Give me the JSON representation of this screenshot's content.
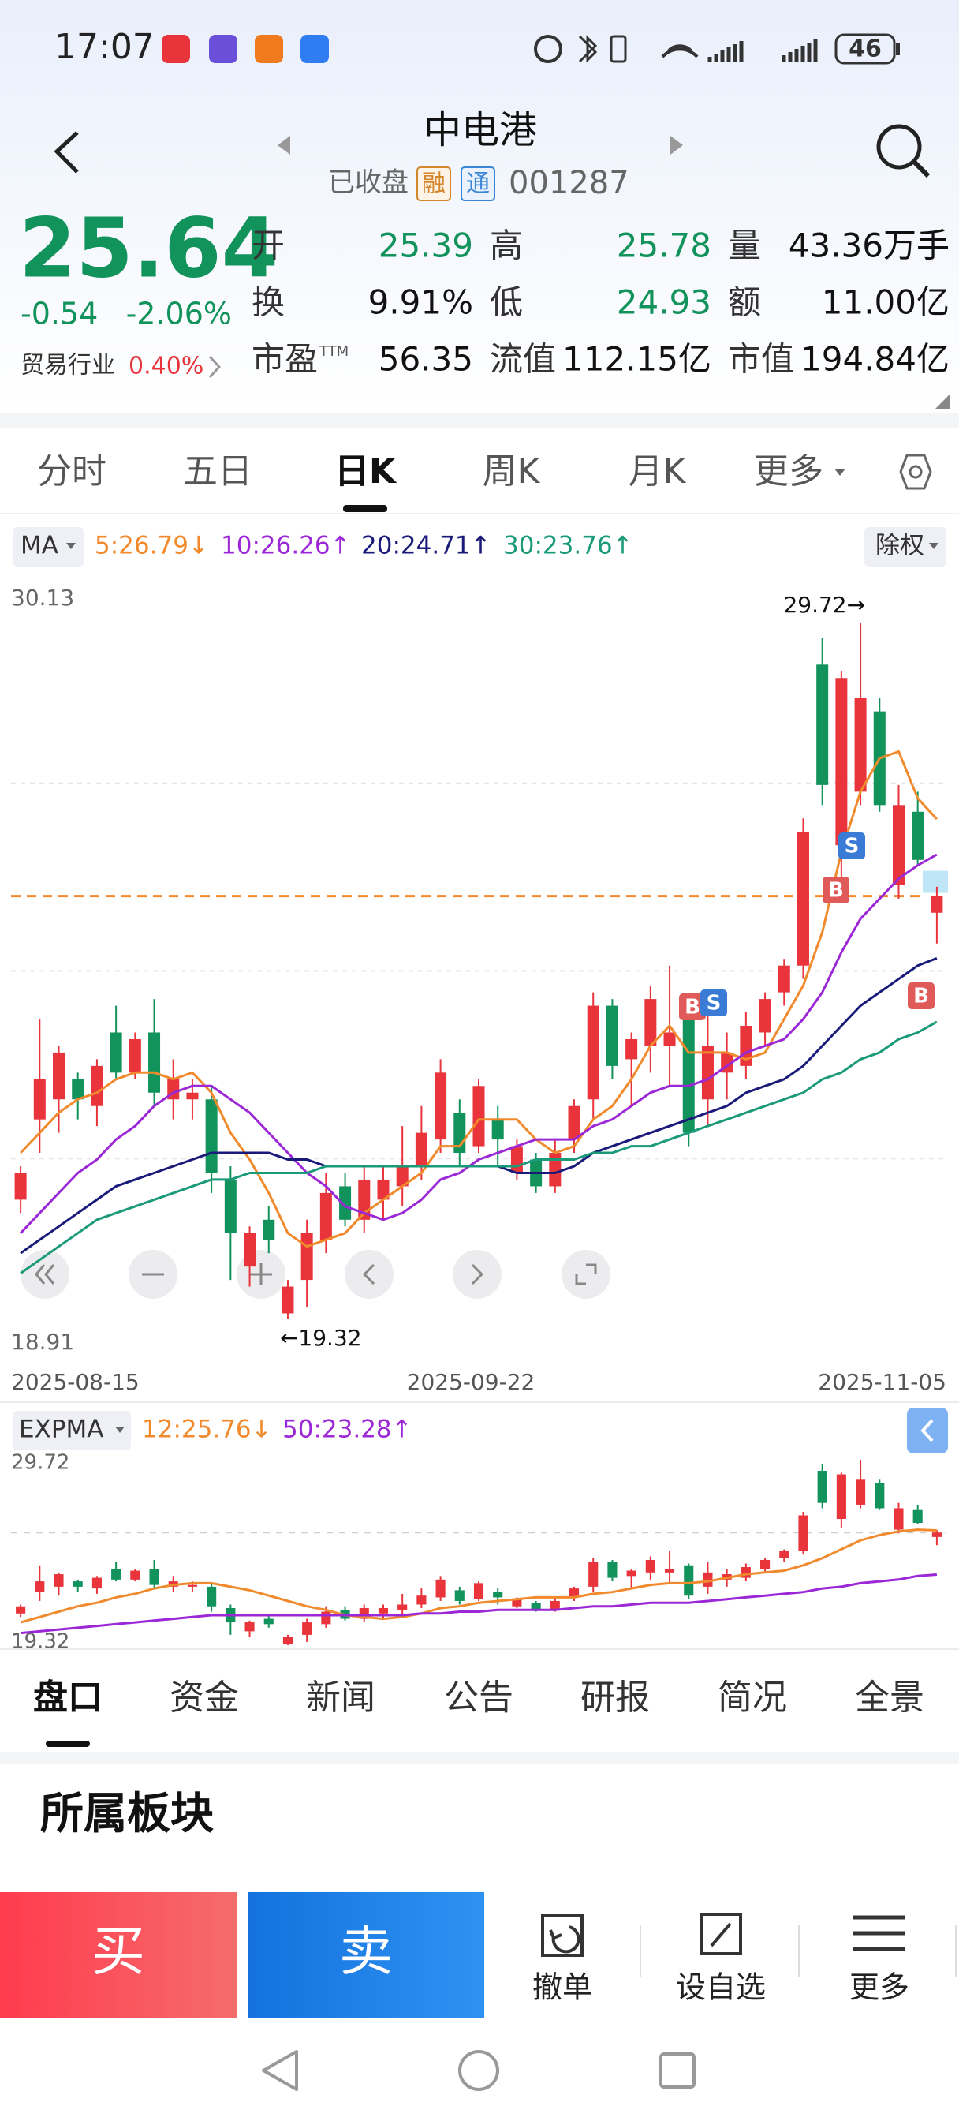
{
  "status_bar": {
    "time": "17:07",
    "battery": "46"
  },
  "header": {
    "title": "中电港",
    "status": "已收盘",
    "badge_margin": "融",
    "badge_connect": "通",
    "code": "001287"
  },
  "quote": {
    "price": "25.64",
    "change": "-0.54",
    "change_pct": "-2.06%",
    "industry": "贸易行业",
    "industry_pct": "0.40%",
    "stats": [
      [
        {
          "label": "开",
          "value": "25.39",
          "color": "#13935c"
        },
        {
          "label": "高",
          "value": "25.78",
          "color": "#13935c"
        },
        {
          "label": "量",
          "value": "43.36万手",
          "color": "#111111"
        }
      ],
      [
        {
          "label": "换",
          "value": "9.91%",
          "color": "#111111"
        },
        {
          "label": "低",
          "value": "24.93",
          "color": "#13935c"
        },
        {
          "label": "额",
          "value": "11.00亿",
          "color": "#111111"
        }
      ],
      [
        {
          "label": "市盈",
          "sup": "TTM",
          "value": "56.35",
          "color": "#111111"
        },
        {
          "label": "流值",
          "value": "112.15亿",
          "color": "#111111"
        },
        {
          "label": "市值",
          "value": "194.84亿",
          "color": "#111111"
        }
      ]
    ]
  },
  "tabs": {
    "items": [
      "分时",
      "五日",
      "日K",
      "周K",
      "月K",
      "更多"
    ],
    "active": 2
  },
  "chart_data": [
    {
      "type": "candlestick",
      "indicator": "MA",
      "adjust": "除权",
      "up_color": "#e8343a",
      "down_color": "#13935c",
      "ylim": [
        18.91,
        30.13
      ],
      "yticks": [
        30.13,
        18.91
      ],
      "x_labels": [
        "2025-08-15",
        "2025-09-22",
        "2025-11-05"
      ],
      "annotations": [
        "29.72→",
        "←19.32"
      ],
      "reference_line": 25.64,
      "trade_marks": [
        "B",
        "S",
        "S",
        "B",
        "B"
      ],
      "open": [
        21.1,
        22.3,
        22.6,
        22.9,
        22.5,
        23.6,
        23.0,
        23.6,
        22.6,
        22.6,
        22.6,
        21.4,
        20.1,
        20.8,
        19.4,
        19.9,
        20.5,
        21.3,
        20.8,
        21.1,
        21.3,
        21.6,
        22.0,
        22.4,
        21.9,
        22.3,
        21.5,
        21.7,
        21.3,
        22.0,
        22.6,
        24.0,
        23.2,
        23.4,
        23.4,
        23.8,
        22.6,
        23.0,
        23.1,
        23.6,
        24.2,
        24.6,
        29.1,
        26.4,
        27.2,
        28.4,
        25.8,
        26.9,
        25.39
      ],
      "high": [
        21.6,
        23.8,
        23.4,
        23.0,
        23.2,
        24.0,
        23.6,
        24.1,
        23.2,
        22.9,
        22.8,
        21.6,
        20.7,
        21.0,
        19.9,
        20.8,
        21.5,
        21.5,
        21.6,
        21.6,
        22.2,
        22.5,
        23.2,
        22.6,
        22.9,
        22.5,
        22.0,
        21.8,
        22.0,
        22.6,
        24.2,
        24.1,
        23.6,
        24.3,
        24.6,
        23.9,
        24.0,
        23.6,
        23.9,
        24.2,
        24.7,
        26.8,
        29.5,
        29.0,
        29.72,
        28.6,
        27.3,
        27.2,
        25.78
      ],
      "low": [
        20.9,
        21.8,
        22.1,
        22.3,
        22.2,
        22.9,
        22.9,
        22.5,
        22.3,
        22.3,
        21.2,
        19.9,
        19.8,
        20.3,
        19.32,
        19.5,
        20.3,
        20.7,
        20.6,
        20.8,
        21.0,
        21.4,
        21.8,
        21.6,
        21.8,
        21.6,
        21.4,
        21.2,
        21.2,
        21.8,
        22.3,
        22.9,
        22.5,
        23.0,
        22.8,
        21.9,
        22.2,
        22.6,
        22.9,
        23.4,
        24.0,
        24.4,
        27.0,
        25.9,
        27.0,
        26.9,
        25.6,
        26.1,
        24.93
      ],
      "close": [
        21.5,
        22.9,
        23.3,
        22.6,
        23.1,
        23.0,
        23.5,
        22.7,
        22.9,
        22.7,
        21.5,
        20.6,
        20.6,
        20.5,
        19.8,
        20.6,
        21.2,
        20.8,
        21.4,
        21.4,
        21.6,
        22.1,
        23.0,
        21.8,
        22.8,
        22.0,
        21.9,
        21.3,
        21.8,
        22.5,
        24.0,
        23.1,
        23.5,
        24.1,
        23.6,
        22.1,
        23.4,
        23.3,
        23.7,
        24.1,
        24.6,
        26.6,
        27.3,
        28.9,
        28.6,
        27.0,
        27.0,
        26.18,
        25.64
      ],
      "series": [
        {
          "name": "5:26.79↓",
          "color": "#f08a2c",
          "values": [
            21.8,
            22.1,
            22.4,
            22.6,
            22.7,
            22.9,
            23.0,
            23.0,
            22.9,
            23.0,
            22.7,
            22.1,
            21.7,
            21.2,
            20.6,
            20.4,
            20.5,
            20.6,
            20.9,
            21.1,
            21.3,
            21.5,
            21.9,
            21.9,
            22.3,
            22.3,
            22.3,
            22.0,
            21.8,
            21.9,
            22.3,
            22.5,
            22.9,
            23.4,
            23.7,
            23.3,
            23.3,
            23.3,
            23.2,
            23.3,
            23.8,
            24.3,
            25.1,
            26.3,
            27.2,
            27.7,
            27.8,
            27.1,
            26.79
          ]
        },
        {
          "name": "10:26.26↑",
          "color": "#9b27d6",
          "values": [
            20.6,
            20.9,
            21.2,
            21.5,
            21.7,
            22.0,
            22.2,
            22.5,
            22.7,
            22.8,
            22.8,
            22.6,
            22.4,
            22.1,
            21.8,
            21.5,
            21.3,
            21.0,
            20.9,
            20.8,
            20.9,
            21.1,
            21.4,
            21.5,
            21.7,
            21.8,
            21.9,
            22.0,
            22.0,
            22.0,
            22.2,
            22.3,
            22.5,
            22.7,
            22.8,
            22.8,
            22.9,
            23.1,
            23.3,
            23.4,
            23.5,
            23.8,
            24.2,
            24.8,
            25.3,
            25.6,
            25.9,
            26.1,
            26.26
          ]
        },
        {
          "name": "20:24.71↑",
          "color": "#1a1a7a",
          "values": [
            20.3,
            20.5,
            20.7,
            20.9,
            21.1,
            21.3,
            21.4,
            21.5,
            21.6,
            21.7,
            21.8,
            21.8,
            21.8,
            21.8,
            21.7,
            21.7,
            21.6,
            21.6,
            21.6,
            21.6,
            21.6,
            21.6,
            21.6,
            21.6,
            21.6,
            21.6,
            21.5,
            21.5,
            21.5,
            21.6,
            21.8,
            21.9,
            22.0,
            22.1,
            22.2,
            22.3,
            22.4,
            22.5,
            22.7,
            22.8,
            22.9,
            23.1,
            23.4,
            23.7,
            24.0,
            24.2,
            24.4,
            24.6,
            24.71
          ]
        },
        {
          "name": "30:23.76↑",
          "color": "#1a9a78",
          "values": [
            20.0,
            20.2,
            20.4,
            20.6,
            20.8,
            20.9,
            21.0,
            21.1,
            21.2,
            21.3,
            21.4,
            21.4,
            21.5,
            21.5,
            21.5,
            21.5,
            21.6,
            21.6,
            21.6,
            21.6,
            21.6,
            21.6,
            21.6,
            21.6,
            21.6,
            21.6,
            21.6,
            21.7,
            21.7,
            21.7,
            21.8,
            21.8,
            21.9,
            21.9,
            22.0,
            22.1,
            22.2,
            22.3,
            22.4,
            22.5,
            22.6,
            22.7,
            22.9,
            23.0,
            23.2,
            23.3,
            23.5,
            23.6,
            23.76
          ]
        }
      ]
    },
    {
      "type": "candlestick",
      "indicator": "EXPMA",
      "ylim": [
        19.32,
        29.72
      ],
      "yticks": [
        29.72,
        19.32
      ],
      "series": [
        {
          "name": "12:25.76↓",
          "color": "#f08a2c",
          "values": [
            20.6,
            20.9,
            21.2,
            21.5,
            21.7,
            22.0,
            22.2,
            22.5,
            22.7,
            22.8,
            22.8,
            22.6,
            22.4,
            22.1,
            21.8,
            21.5,
            21.3,
            21.0,
            20.9,
            20.8,
            20.9,
            21.1,
            21.4,
            21.5,
            21.7,
            21.8,
            21.9,
            22.0,
            22.0,
            22.0,
            22.2,
            22.3,
            22.5,
            22.7,
            22.8,
            22.8,
            22.9,
            23.1,
            23.3,
            23.4,
            23.5,
            23.8,
            24.2,
            24.7,
            25.2,
            25.5,
            25.7,
            25.8,
            25.76
          ]
        },
        {
          "name": "50:23.28↑",
          "color": "#9b27d6",
          "values": [
            20.0,
            20.1,
            20.2,
            20.3,
            20.4,
            20.5,
            20.6,
            20.7,
            20.8,
            20.9,
            21.0,
            21.0,
            21.0,
            21.0,
            21.0,
            21.0,
            21.0,
            21.0,
            21.0,
            21.0,
            21.0,
            21.1,
            21.1,
            21.2,
            21.2,
            21.3,
            21.3,
            21.3,
            21.3,
            21.4,
            21.5,
            21.5,
            21.6,
            21.7,
            21.7,
            21.7,
            21.8,
            21.9,
            22.0,
            22.1,
            22.2,
            22.3,
            22.5,
            22.6,
            22.8,
            22.9,
            23.0,
            23.2,
            23.28
          ]
        }
      ]
    }
  ],
  "bottom_tabs": {
    "items": [
      "盘口",
      "资金",
      "新闻",
      "公告",
      "研报",
      "简况",
      "全景"
    ],
    "active": 0
  },
  "section": {
    "title": "所属板块"
  },
  "actions": {
    "buy": "买",
    "sell": "卖",
    "items": [
      "撤单",
      "设自选",
      "更多"
    ]
  }
}
